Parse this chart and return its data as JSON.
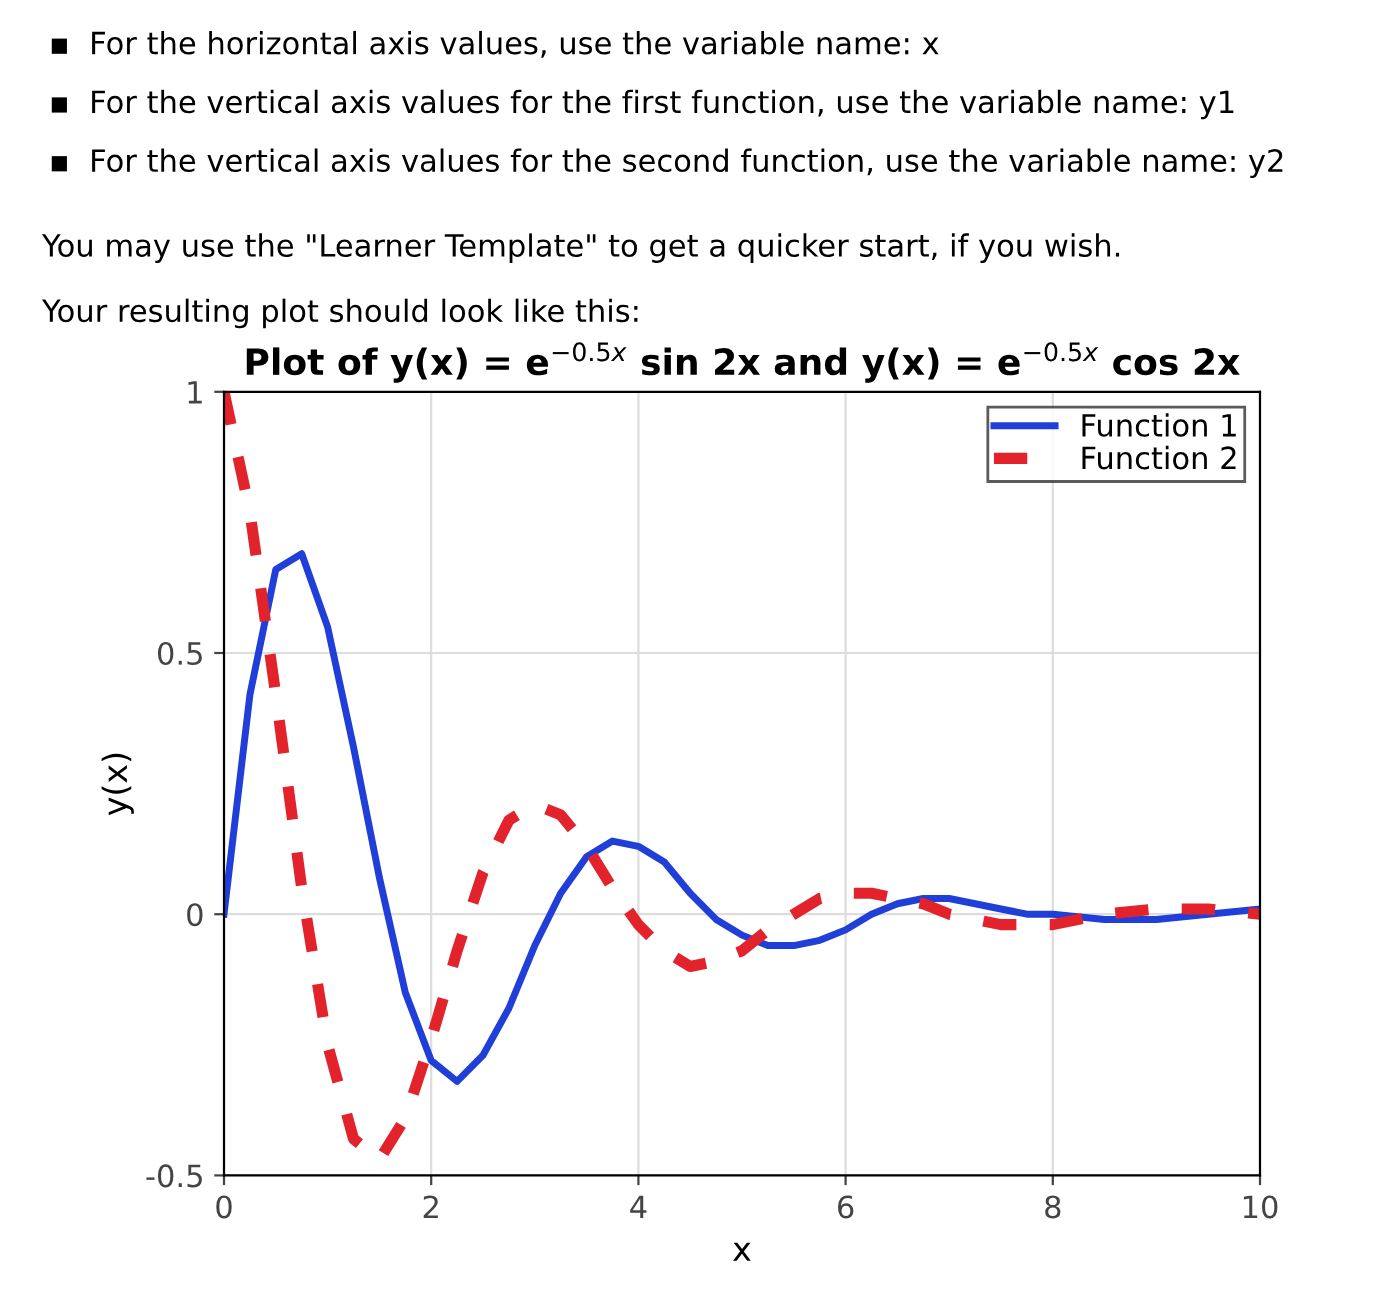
{
  "chart_data": {
    "type": "line",
    "title": "Plot of y(x) = e$^{−0.5x}$ sin 2x and y(x) = e$^{−0.5x}$ cos 2x",
    "xlabel": "x",
    "ylabel": "y(x)",
    "annotations": [
      "▪  For the horizontal axis values, use the variable name: x",
      "▪  For the vertical axis values for the first function, use the variable name: y1",
      "▪  For the vertical axis values for the second function, use the variable name: y2",
      "You may use the \"Learner Template\" to get a quicker start, if you wish.",
      "Your resulting plot should look like this:"
    ],
    "x": [
      0,
      0.25,
      0.5,
      0.75,
      1,
      1.25,
      1.5,
      1.75,
      2,
      2.25,
      2.5,
      2.75,
      3,
      3.25,
      3.5,
      3.75,
      4,
      4.25,
      4.5,
      4.75,
      5,
      5.25,
      5.5,
      5.75,
      6,
      6.25,
      6.5,
      6.75,
      7,
      7.25,
      7.5,
      7.75,
      8,
      8.5,
      9,
      9.5,
      10
    ],
    "series": [
      {
        "name": "Function 1",
        "color": "#1f3fd8",
        "line_style": "solid",
        "values": [
          0,
          0.42,
          0.66,
          0.69,
          0.55,
          0.32,
          0.07,
          -0.15,
          -0.28,
          -0.32,
          -0.27,
          -0.18,
          -0.06,
          0.04,
          0.11,
          0.14,
          0.13,
          0.1,
          0.04,
          -0.01,
          -0.04,
          -0.06,
          -0.06,
          -0.05,
          -0.03,
          0,
          0.02,
          0.03,
          0.03,
          0.02,
          0.01,
          0,
          0,
          -0.01,
          -0.01,
          0,
          0.01
        ]
      },
      {
        "name": "Function 2",
        "color": "#e3232b",
        "line_style": "dashed",
        "values": [
          1,
          0.77,
          0.42,
          0.05,
          -0.25,
          -0.43,
          -0.47,
          -0.39,
          -0.24,
          -0.07,
          0.08,
          0.18,
          0.21,
          0.19,
          0.13,
          0.05,
          -0.02,
          -0.07,
          -0.1,
          -0.09,
          -0.07,
          -0.03,
          0,
          0.03,
          0.04,
          0.04,
          0.03,
          0.02,
          0,
          -0.01,
          -0.02,
          -0.02,
          -0.02,
          0,
          0.01,
          0.01,
          0
        ]
      }
    ],
    "xlim": [
      0,
      10
    ],
    "ylim": [
      -0.5,
      1
    ],
    "xticks": [
      0,
      2,
      4,
      6,
      8,
      10
    ],
    "yticks": [
      -0.5,
      0,
      0.5,
      1
    ],
    "grid": true,
    "legend": "top right"
  }
}
